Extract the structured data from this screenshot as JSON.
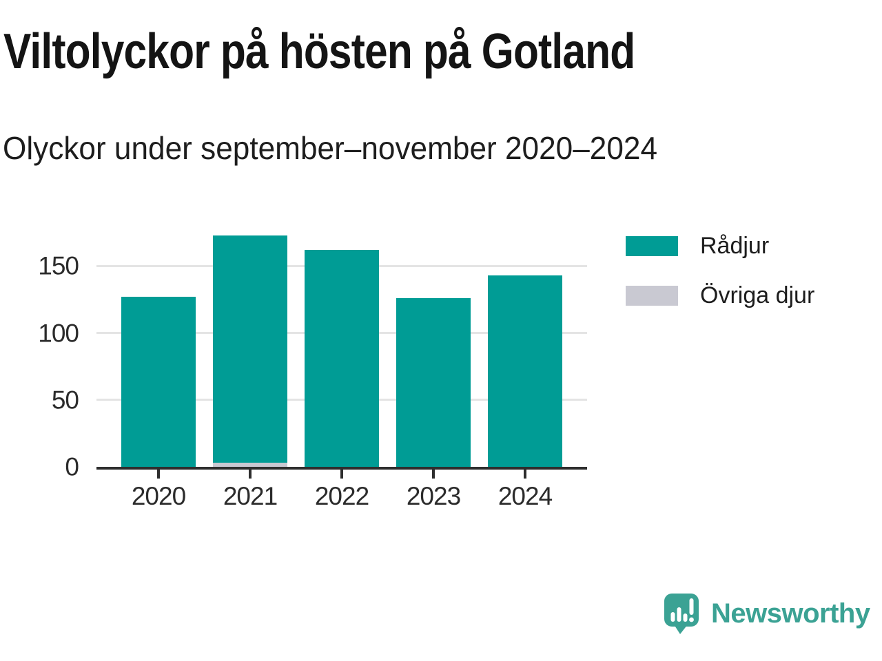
{
  "chart_data": {
    "type": "bar",
    "stacked": true,
    "title": "Viltolyckor på hösten på Gotland",
    "subtitle": "Olyckor under september–november 2020–2024",
    "categories": [
      "2020",
      "2021",
      "2022",
      "2023",
      "2024"
    ],
    "series": [
      {
        "name": "Rådjur",
        "color": "#009C95",
        "values": [
          127,
          170,
          162,
          126,
          143
        ]
      },
      {
        "name": "Övriga djur",
        "color": "#C9C9D2",
        "values": [
          0,
          3,
          0,
          0,
          0
        ]
      }
    ],
    "xlabel": "",
    "ylabel": "",
    "ylim": [
      0,
      179
    ],
    "y_ticks": [
      0,
      50,
      100,
      150
    ],
    "grid": true,
    "legend_position": "top-right",
    "stack_order": "last-series-at-bottom"
  },
  "legend": {
    "items": [
      {
        "label": "Rådjur",
        "color": "#009C95"
      },
      {
        "label": "Övriga djur",
        "color": "#C9C9D2"
      }
    ]
  },
  "branding": {
    "name": "Newsworthy",
    "color": "#3BA294",
    "icon": "newsworthy-logo-icon"
  },
  "colors": {
    "background": "#FFFFFF",
    "gridline": "#E4E4E4",
    "axis": "#2E2E2E",
    "text": "#1D1D1D"
  }
}
